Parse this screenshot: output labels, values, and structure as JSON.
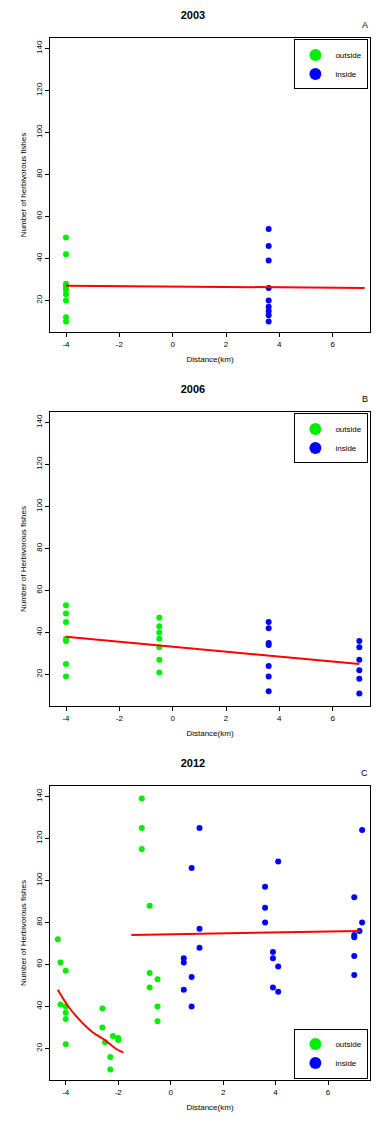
{
  "chart_data": [
    {
      "type": "scatter",
      "title": "2003",
      "annotation": "A",
      "x_label": "Distance(km)",
      "y_label": "Number of herbivorous fishes",
      "xlim": [
        -4.6,
        7.4
      ],
      "xticks": [
        -4,
        -2,
        0,
        2,
        4,
        6
      ],
      "ylim": [
        5,
        145
      ],
      "yticks": [
        20,
        40,
        60,
        80,
        100,
        120,
        140
      ],
      "legend": "top right",
      "grid": false,
      "series": [
        {
          "name": "outside",
          "color": "#00ee00",
          "marker": "circle",
          "x": [
            -4,
            -4,
            -4,
            -4,
            -4,
            -4,
            -4,
            -4,
            -4,
            -4
          ],
          "values": [
            50,
            42,
            28,
            27,
            26,
            25,
            23,
            20,
            12,
            10
          ]
        },
        {
          "name": "inside",
          "color": "#0000ff",
          "marker": "circle",
          "x": [
            3.6,
            3.6,
            3.6,
            3.6,
            3.6,
            3.6,
            3.6,
            3.6,
            3.6
          ],
          "values": [
            54,
            46,
            39,
            26,
            20,
            17,
            15,
            13,
            10
          ]
        },
        {
          "type": "line",
          "color": "#ff0000",
          "line_style": "solid",
          "x": [
            -4,
            7.2
          ],
          "values": [
            27,
            26
          ]
        }
      ]
    },
    {
      "type": "scatter",
      "title": "2006",
      "annotation": "B",
      "x_label": "Distance(km)",
      "y_label": "Number of Herbivorous fishes",
      "xlim": [
        -4.6,
        7.4
      ],
      "xticks": [
        -4,
        -2,
        0,
        2,
        4,
        6
      ],
      "ylim": [
        5,
        145
      ],
      "yticks": [
        20,
        40,
        60,
        80,
        100,
        120,
        140
      ],
      "legend": "top right",
      "grid": false,
      "series": [
        {
          "name": "outside",
          "color": "#00ee00",
          "marker": "circle",
          "x": [
            -4,
            -4,
            -4,
            -4,
            -4,
            -4,
            -4,
            -0.5,
            -0.5,
            -0.5,
            -0.5,
            -0.5,
            -0.5,
            -0.5
          ],
          "values": [
            53,
            49,
            45,
            37,
            36,
            25,
            19,
            47,
            43,
            40,
            37,
            33,
            27,
            21
          ]
        },
        {
          "name": "inside",
          "color": "#0000ff",
          "marker": "circle",
          "x": [
            3.6,
            3.6,
            3.6,
            3.6,
            3.6,
            3.6,
            3.6,
            7,
            7,
            7,
            7,
            7,
            7
          ],
          "values": [
            45,
            42,
            35,
            34,
            24,
            19,
            12,
            36,
            33,
            27,
            22,
            18,
            11
          ]
        },
        {
          "type": "line",
          "color": "#ff0000",
          "line_style": "solid",
          "x": [
            -4,
            7
          ],
          "values": [
            38,
            25
          ]
        }
      ]
    },
    {
      "type": "scatter",
      "title": "2012",
      "annotation": "C",
      "x_label": "Distance(km)",
      "y_label": "Number of Herbivorous fishes",
      "xlim": [
        -4.6,
        7.6
      ],
      "xticks": [
        -4,
        -2,
        0,
        2,
        4,
        6
      ],
      "ylim": [
        5,
        145
      ],
      "yticks": [
        20,
        40,
        60,
        80,
        100,
        120,
        140
      ],
      "legend": "bottom right",
      "grid": false,
      "series": [
        {
          "name": "outside",
          "color": "#00ee00",
          "marker": "circle",
          "x": [
            -4.3,
            -4.2,
            -4,
            -4.2,
            -4,
            -4,
            -4,
            -4,
            -2.6,
            -2.6,
            -2.2,
            -2,
            -2,
            -2.5,
            -2.3,
            -2.3,
            -1.1,
            -1.1,
            -1.1,
            -0.8,
            -0.8,
            -0.5,
            -0.8,
            -0.5,
            -0.5
          ],
          "values": [
            72,
            61,
            57,
            41,
            40,
            37,
            34,
            22,
            39,
            30,
            26,
            25,
            24,
            23,
            16,
            10,
            139,
            125,
            115,
            88,
            56,
            53,
            49,
            40,
            33
          ]
        },
        {
          "name": "inside",
          "color": "#0000ff",
          "marker": "circle",
          "x": [
            0.5,
            0.5,
            0.5,
            1.1,
            0.8,
            1.1,
            1.1,
            0.8,
            0.8,
            3.6,
            3.6,
            3.6,
            4.1,
            3.9,
            3.9,
            4.1,
            3.9,
            4.1,
            7.3,
            7,
            7.3,
            7.2,
            7,
            7,
            7,
            7
          ],
          "values": [
            63,
            61,
            48,
            125,
            106,
            77,
            68,
            54,
            40,
            97,
            87,
            80,
            109,
            66,
            63,
            59,
            49,
            47,
            124,
            92,
            80,
            76,
            74,
            73,
            64,
            55
          ]
        },
        {
          "type": "line",
          "color": "#ff0000",
          "line_style": "curve",
          "x": [
            -4.3,
            -3.9,
            -3.5,
            -3.0,
            -2.5,
            -2.1,
            -1.8
          ],
          "values": [
            48,
            40,
            34,
            28,
            24,
            20,
            18
          ]
        },
        {
          "type": "line",
          "color": "#ff0000",
          "line_style": "solid",
          "x": [
            -1.5,
            7.2
          ],
          "values": [
            74,
            76
          ]
        }
      ]
    }
  ]
}
